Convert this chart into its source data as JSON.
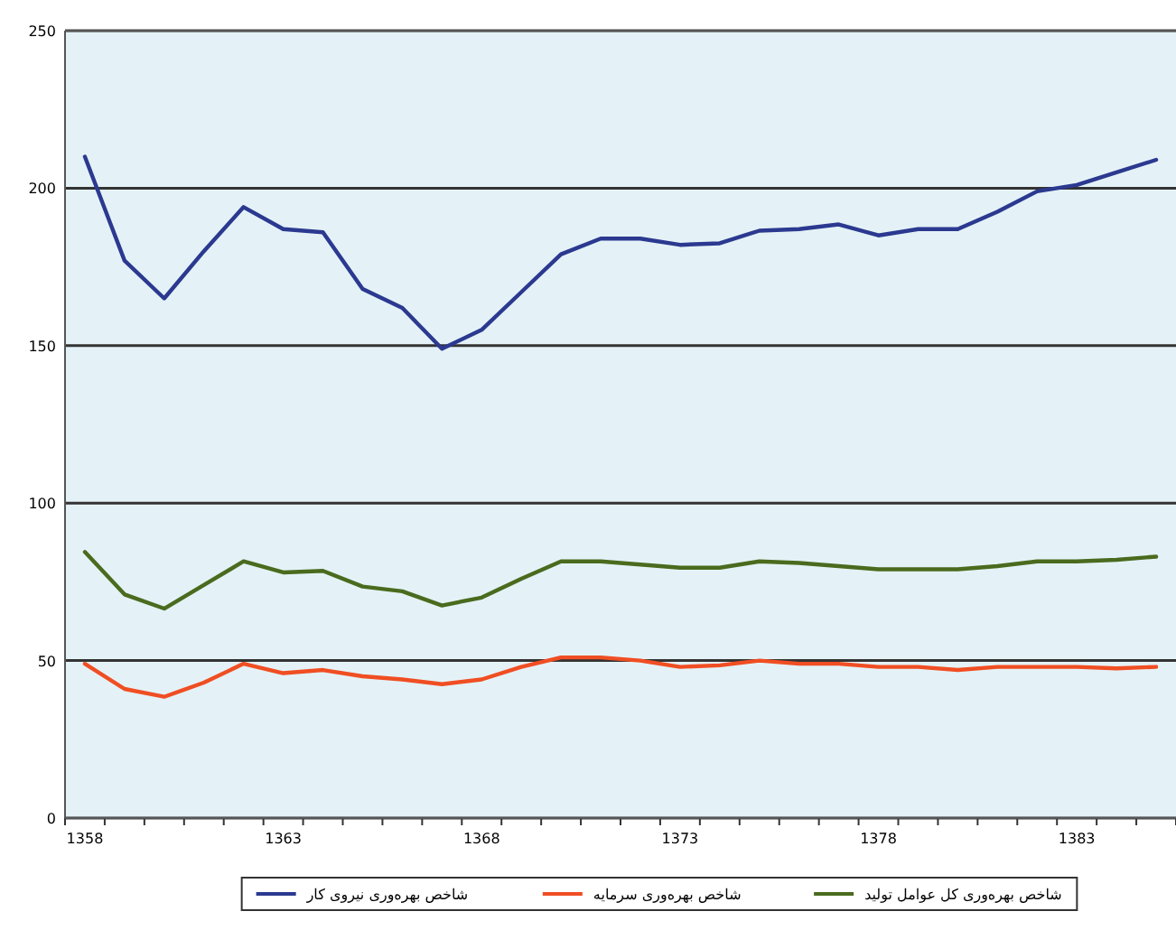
{
  "chart_data": {
    "type": "line",
    "categories": [
      "1358",
      null,
      null,
      null,
      null,
      "1363",
      null,
      null,
      null,
      null,
      "1368",
      null,
      null,
      null,
      null,
      "1373",
      null,
      null,
      null,
      null,
      "1378",
      null,
      null,
      null,
      null,
      "1383",
      null,
      null
    ],
    "series": [
      {
        "name": "شاخص بهره‌وری نیروی کار",
        "color": "#2b3990",
        "values": [
          210,
          177,
          165,
          180,
          194,
          187,
          186,
          168,
          162,
          149,
          155,
          167,
          179,
          184,
          184,
          182,
          182.5,
          186.5,
          187,
          188.5,
          185,
          187,
          187,
          192.5,
          199,
          201,
          205,
          209
        ]
      },
      {
        "name": "شاخص بهره‌وری سرمایه",
        "color": "#f04e23",
        "values": [
          49,
          41,
          38.5,
          43,
          49,
          46,
          47,
          45,
          44,
          42.5,
          44,
          48,
          51,
          51,
          50,
          48,
          48.5,
          50,
          49,
          49,
          48,
          48,
          47,
          48,
          48,
          48,
          47.5,
          48
        ]
      },
      {
        "name": "شاخص بهره‌وری کل عوامل تولید",
        "color": "#4a6b1e",
        "values": [
          84.5,
          71,
          66.5,
          74,
          81.5,
          78,
          78.5,
          73.5,
          72,
          67.5,
          70,
          76,
          81.5,
          81.5,
          80.5,
          79.5,
          79.5,
          81.5,
          81,
          80,
          79,
          79,
          79,
          80,
          81.5,
          81.5,
          82,
          83
        ]
      }
    ],
    "ylim": [
      0,
      250
    ],
    "yticks": [
      0,
      50,
      100,
      150,
      200,
      250
    ],
    "grid": "y",
    "legend": "bottom",
    "marker": "none",
    "line_style": "solid"
  }
}
